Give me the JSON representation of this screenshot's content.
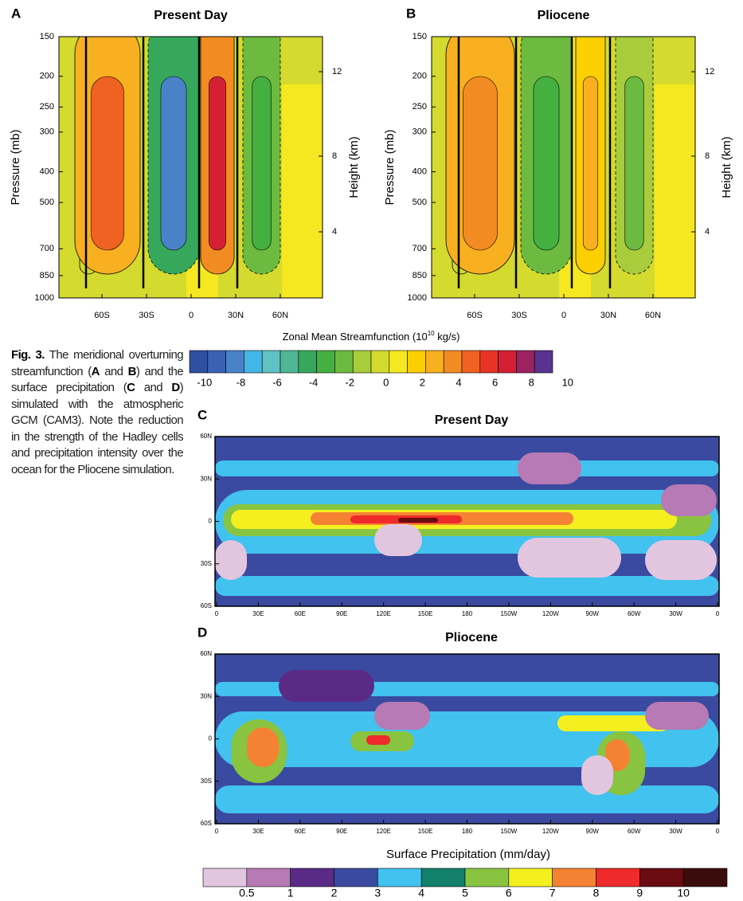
{
  "panels": [
    {
      "letter": "A",
      "title": "Present Day",
      "y_label": "Pressure (mb)",
      "y2_label": "Height (km)",
      "y_ticks": [
        "150",
        "200",
        "250",
        "300",
        "400",
        "500",
        "700",
        "850",
        "1000"
      ],
      "y2_ticks": [
        "12",
        "8",
        "4"
      ],
      "x_ticks": [
        "60S",
        "30S",
        "0",
        "30N",
        "60N"
      ]
    },
    {
      "letter": "B",
      "title": "Pliocene",
      "y_label": "Pressure (mb)",
      "y2_label": "Height (km)",
      "y_ticks": [
        "150",
        "200",
        "250",
        "300",
        "400",
        "500",
        "700",
        "850",
        "1000"
      ],
      "y2_ticks": [
        "12",
        "8",
        "4"
      ],
      "x_ticks": [
        "60S",
        "30S",
        "0",
        "30N",
        "60N"
      ]
    }
  ],
  "streamfunction_colorbar": {
    "title": "Zonal Mean Streamfunction (10",
    "title_sup": "10",
    "title_end": " kg/s)",
    "labels": [
      "-10",
      "-8",
      "-6",
      "-4",
      "-2",
      "0",
      "2",
      "4",
      "6",
      "8",
      "10"
    ],
    "colors": [
      "#2f4f9f",
      "#3a62b4",
      "#4a82c8",
      "#42b6e6",
      "#5fc2c4",
      "#4fb696",
      "#36a85c",
      "#44b040",
      "#6cba40",
      "#a8cc3c",
      "#d4da2e",
      "#f6e820",
      "#fcd000",
      "#f8b020",
      "#f28c22",
      "#f06222",
      "#e83426",
      "#d41f34",
      "#9c2262",
      "#5a3290"
    ]
  },
  "caption": [
    {
      "text": "Fig. 3.",
      "bold": true
    },
    {
      "text": " The meridional overturning streamfunction (",
      "bold": false
    },
    {
      "text": "A",
      "bold": true
    },
    {
      "text": " and ",
      "bold": false
    },
    {
      "text": "B",
      "bold": true
    },
    {
      "text": ") and the surface precipitation (",
      "bold": false
    },
    {
      "text": "C",
      "bold": true
    },
    {
      "text": " and ",
      "bold": false
    },
    {
      "text": "D",
      "bold": true
    },
    {
      "text": ") simulated with the atmospheric GCM (CAM3). Note the reduction in the strength of the Hadley cells and precipitation intensity over the ocean for the Pliocene simulation.",
      "bold": false
    }
  ],
  "maps": [
    {
      "letter": "C",
      "title": "Present Day",
      "lat_ticks": [
        "60N",
        "30N",
        "0",
        "30S",
        "60S"
      ],
      "lon_ticks": [
        "0",
        "30E",
        "60E",
        "90E",
        "120E",
        "150E",
        "180",
        "150W",
        "120W",
        "90W",
        "60W",
        "30W",
        "0"
      ]
    },
    {
      "letter": "D",
      "title": "Pliocene",
      "lat_ticks": [
        "60N",
        "30N",
        "0",
        "30S",
        "60S"
      ],
      "lon_ticks": [
        "0",
        "30E",
        "60E",
        "90E",
        "120E",
        "150E",
        "180",
        "150W",
        "120W",
        "90W",
        "60W",
        "30W",
        "0"
      ]
    }
  ],
  "precip_colorbar": {
    "title": "Surface Precipitation (mm/day)",
    "labels": [
      "0.5",
      "1",
      "2",
      "3",
      "4",
      "5",
      "6",
      "7",
      "8",
      "9",
      "10"
    ],
    "colors": [
      "#e2c6e0",
      "#b77ab4",
      "#5a2a86",
      "#3a4aa0",
      "#42c2ee",
      "#12806a",
      "#88c440",
      "#f4f020",
      "#f58232",
      "#ee2a2a",
      "#6a0c12",
      "#3a0c0c"
    ]
  }
}
